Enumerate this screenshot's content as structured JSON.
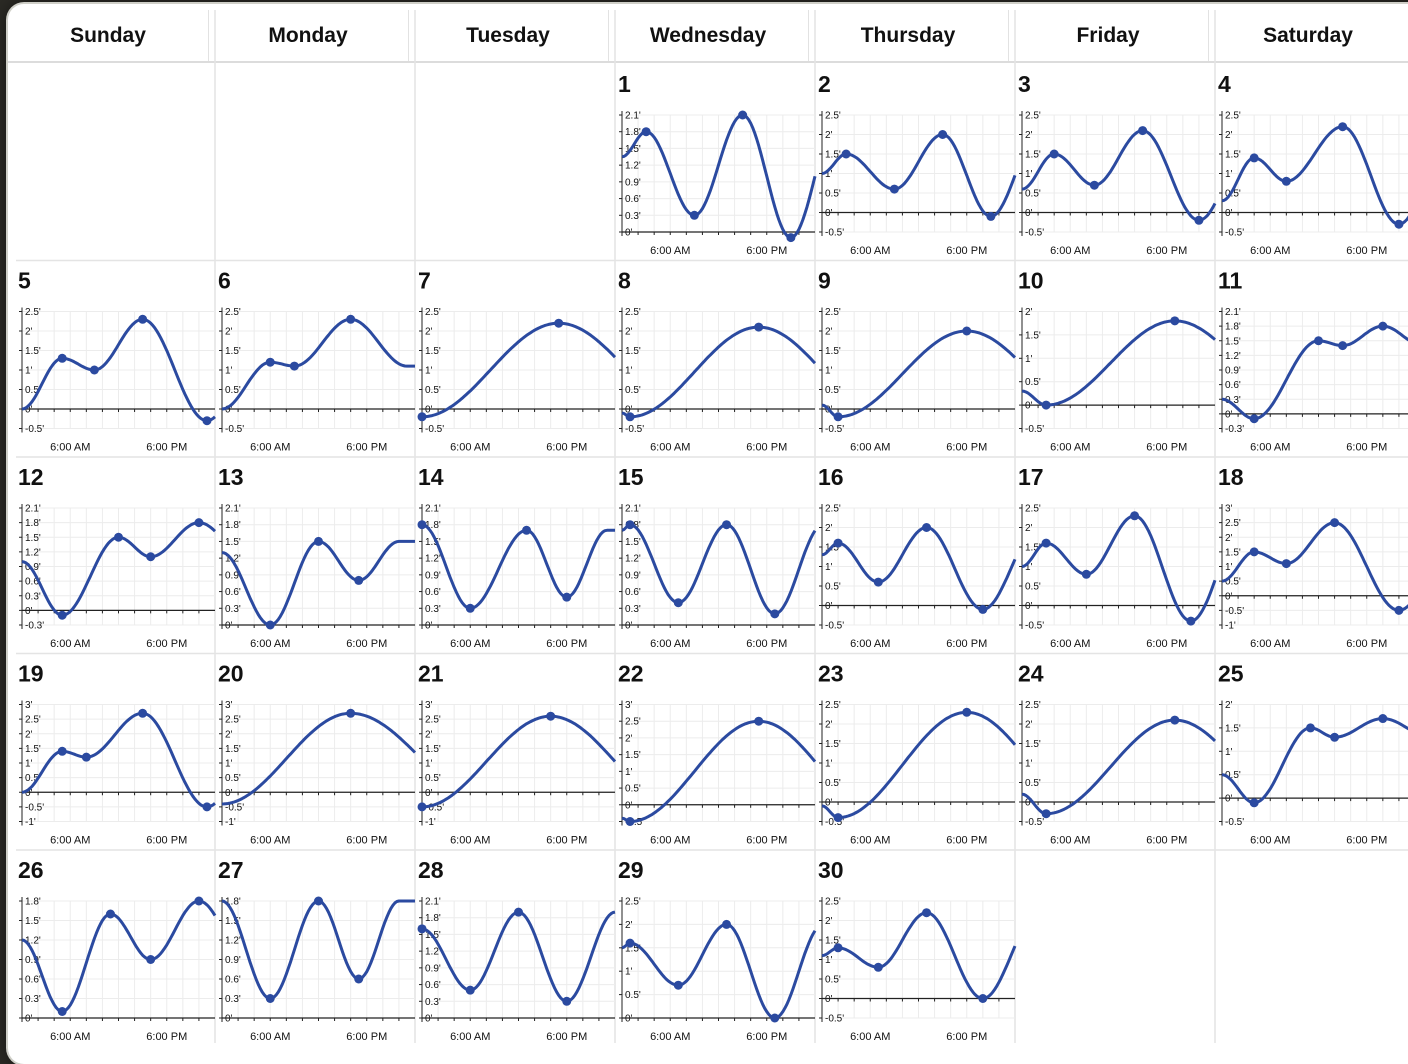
{
  "headers": [
    "Sunday",
    "Monday",
    "Tuesday",
    "Wednesday",
    "Thursday",
    "Friday",
    "Saturday"
  ],
  "colors": {
    "curve": "#2b4aa0",
    "grid": "#ececec",
    "axis": "#222222",
    "text": "#111111"
  },
  "chart_data": {
    "type": "line",
    "x_tick_labels": [
      "6:00 AM",
      "6:00 PM"
    ],
    "unit": "ft",
    "days": [
      {
        "date": "1",
        "col": 3,
        "row": 0,
        "yticks": [
          "2.1'",
          "1.8'",
          "1.5'",
          "1.2'",
          "0.9'",
          "0.6'",
          "0.3'",
          "0'"
        ],
        "points": [
          [
            3,
            1.8
          ],
          [
            9,
            0.3
          ],
          [
            15,
            2.1
          ],
          [
            21,
            -0.1
          ]
        ],
        "start": 1.35
      },
      {
        "date": "2",
        "col": 4,
        "row": 0,
        "yticks": [
          "2.5'",
          "2'",
          "1.5'",
          "1'",
          "0.5'",
          "0'",
          "-0.5'"
        ],
        "points": [
          [
            3,
            1.5
          ],
          [
            9,
            0.6
          ],
          [
            15,
            2.0
          ],
          [
            21,
            -0.1
          ]
        ],
        "start": 1.0
      },
      {
        "date": "3",
        "col": 5,
        "row": 0,
        "yticks": [
          "2.5'",
          "2'",
          "1.5'",
          "1'",
          "0.5'",
          "0'",
          "-0.5'"
        ],
        "points": [
          [
            4,
            1.5
          ],
          [
            9,
            0.7
          ],
          [
            15,
            2.1
          ],
          [
            22,
            -0.2
          ]
        ],
        "start": 0.6
      },
      {
        "date": "4",
        "col": 6,
        "row": 0,
        "yticks": [
          "2.5'",
          "2'",
          "1.5'",
          "1'",
          "0.5'",
          "0'",
          "-0.5'"
        ],
        "points": [
          [
            4,
            1.4
          ],
          [
            8,
            0.8
          ],
          [
            15,
            2.2
          ],
          [
            22,
            -0.3
          ]
        ],
        "start": 0.3
      },
      {
        "date": "5",
        "col": 0,
        "row": 1,
        "yticks": [
          "2.5'",
          "2'",
          "1.5'",
          "1'",
          "0.5'",
          "0'",
          "-0.5'"
        ],
        "points": [
          [
            5,
            1.3
          ],
          [
            9,
            1.0
          ],
          [
            15,
            2.3
          ],
          [
            23,
            -0.3
          ]
        ],
        "start": 0.0
      },
      {
        "date": "6",
        "col": 1,
        "row": 1,
        "yticks": [
          "2.5'",
          "2'",
          "1.5'",
          "1'",
          "0.5'",
          "0'",
          "-0.5'"
        ],
        "points": [
          [
            6,
            1.2
          ],
          [
            9,
            1.1
          ],
          [
            16,
            2.3
          ]
        ],
        "start": 0.0
      },
      {
        "date": "7",
        "col": 2,
        "row": 1,
        "yticks": [
          "2.5'",
          "2'",
          "1.5'",
          "1'",
          "0.5'",
          "0'",
          "-0.5'"
        ],
        "points": [
          [
            0,
            -0.2
          ],
          [
            17,
            2.2
          ]
        ],
        "start": -0.2
      },
      {
        "date": "8",
        "col": 3,
        "row": 1,
        "yticks": [
          "2.5'",
          "2'",
          "1.5'",
          "1'",
          "0.5'",
          "0'",
          "-0.5'"
        ],
        "points": [
          [
            1,
            -0.2
          ],
          [
            17,
            2.1
          ]
        ],
        "start": -0.1
      },
      {
        "date": "9",
        "col": 4,
        "row": 1,
        "yticks": [
          "2.5'",
          "2'",
          "1.5'",
          "1'",
          "0.5'",
          "0'",
          "-0.5'"
        ],
        "points": [
          [
            2,
            -0.2
          ],
          [
            18,
            2.0
          ]
        ],
        "start": 0.1
      },
      {
        "date": "10",
        "col": 5,
        "row": 1,
        "yticks": [
          "2'",
          "1.5'",
          "1'",
          "0.5'",
          "0'",
          "-0.5'"
        ],
        "points": [
          [
            3,
            0.0
          ],
          [
            19,
            1.8
          ]
        ],
        "start": 0.3
      },
      {
        "date": "11",
        "col": 6,
        "row": 1,
        "yticks": [
          "2.1'",
          "1.8'",
          "1.5'",
          "1.2'",
          "0.9'",
          "0.6'",
          "0.3'",
          "0'",
          "-0.3'"
        ],
        "points": [
          [
            4,
            -0.1
          ],
          [
            12,
            1.5
          ],
          [
            15,
            1.4
          ],
          [
            20,
            1.8
          ]
        ],
        "start": 0.3
      },
      {
        "date": "12",
        "col": 0,
        "row": 2,
        "yticks": [
          "2.1'",
          "1.8'",
          "1.5'",
          "1.2'",
          "0.9'",
          "0.6'",
          "0.3'",
          "0'",
          "-0.3'"
        ],
        "points": [
          [
            5,
            -0.1
          ],
          [
            12,
            1.5
          ],
          [
            16,
            1.1
          ],
          [
            22,
            1.8
          ]
        ],
        "start": 1.0
      },
      {
        "date": "13",
        "col": 1,
        "row": 2,
        "yticks": [
          "2.1'",
          "1.8'",
          "1.5'",
          "1.2'",
          "0.9'",
          "0.6'",
          "0.3'",
          "0'"
        ],
        "points": [
          [
            6,
            0.0
          ],
          [
            12,
            1.5
          ],
          [
            17,
            0.8
          ]
        ],
        "start": 1.3
      },
      {
        "date": "14",
        "col": 2,
        "row": 2,
        "yticks": [
          "2.1'",
          "1.8'",
          "1.5'",
          "1.2'",
          "0.9'",
          "0.6'",
          "0.3'",
          "0'"
        ],
        "points": [
          [
            0,
            1.8
          ],
          [
            6,
            0.3
          ],
          [
            13,
            1.7
          ],
          [
            18,
            0.5
          ]
        ],
        "start": 1.8
      },
      {
        "date": "15",
        "col": 3,
        "row": 2,
        "yticks": [
          "2.1'",
          "1.8'",
          "1.5'",
          "1.2'",
          "0.9'",
          "0.6'",
          "0.3'",
          "0'"
        ],
        "points": [
          [
            1,
            1.8
          ],
          [
            7,
            0.4
          ],
          [
            13,
            1.8
          ],
          [
            19,
            0.2
          ]
        ],
        "start": 1.7
      },
      {
        "date": "16",
        "col": 4,
        "row": 2,
        "yticks": [
          "2.5'",
          "2'",
          "1.5'",
          "1'",
          "0.5'",
          "0'",
          "-0.5'"
        ],
        "points": [
          [
            2,
            1.6
          ],
          [
            7,
            0.6
          ],
          [
            13,
            2.0
          ],
          [
            20,
            -0.1
          ]
        ],
        "start": 1.3
      },
      {
        "date": "17",
        "col": 5,
        "row": 2,
        "yticks": [
          "2.5'",
          "2'",
          "1.5'",
          "1'",
          "0.5'",
          "0'",
          "-0.5'"
        ],
        "points": [
          [
            3,
            1.6
          ],
          [
            8,
            0.8
          ],
          [
            14,
            2.3
          ],
          [
            21,
            -0.4
          ]
        ],
        "start": 1.0
      },
      {
        "date": "18",
        "col": 6,
        "row": 2,
        "yticks": [
          "3'",
          "2.5'",
          "2'",
          "1.5'",
          "1'",
          "0.5'",
          "0'",
          "-0.5'",
          "-1'"
        ],
        "points": [
          [
            4,
            1.5
          ],
          [
            8,
            1.1
          ],
          [
            14,
            2.5
          ],
          [
            22,
            -0.5
          ]
        ],
        "start": 0.5
      },
      {
        "date": "19",
        "col": 0,
        "row": 3,
        "yticks": [
          "3'",
          "2.5'",
          "2'",
          "1.5'",
          "1'",
          "0.5'",
          "0'",
          "-0.5'",
          "-1'"
        ],
        "points": [
          [
            5,
            1.4
          ],
          [
            8,
            1.2
          ],
          [
            15,
            2.7
          ],
          [
            23,
            -0.5
          ]
        ],
        "start": 0.0
      },
      {
        "date": "20",
        "col": 1,
        "row": 3,
        "yticks": [
          "3'",
          "2.5'",
          "2'",
          "1.5'",
          "1'",
          "0.5'",
          "0'",
          "-0.5'",
          "-1'"
        ],
        "points": [
          [
            16,
            2.7
          ]
        ],
        "start": -0.4
      },
      {
        "date": "21",
        "col": 2,
        "row": 3,
        "yticks": [
          "3'",
          "2.5'",
          "2'",
          "1.5'",
          "1'",
          "0.5'",
          "0'",
          "-0.5'",
          "-1'"
        ],
        "points": [
          [
            0,
            -0.5
          ],
          [
            16,
            2.6
          ]
        ],
        "start": -0.5
      },
      {
        "date": "22",
        "col": 3,
        "row": 3,
        "yticks": [
          "3'",
          "2.5'",
          "2'",
          "1.5'",
          "1'",
          "0.5'",
          "0'",
          "-0.5'"
        ],
        "points": [
          [
            1,
            -0.5
          ],
          [
            17,
            2.5
          ]
        ],
        "start": -0.4
      },
      {
        "date": "23",
        "col": 4,
        "row": 3,
        "yticks": [
          "2.5'",
          "2'",
          "1.5'",
          "1'",
          "0.5'",
          "0'",
          "-0.5'"
        ],
        "points": [
          [
            2,
            -0.4
          ],
          [
            18,
            2.3
          ]
        ],
        "start": -0.1
      },
      {
        "date": "24",
        "col": 5,
        "row": 3,
        "yticks": [
          "2.5'",
          "2'",
          "1.5'",
          "1'",
          "0.5'",
          "0'",
          "-0.5'"
        ],
        "points": [
          [
            3,
            -0.3
          ],
          [
            19,
            2.1
          ]
        ],
        "start": 0.2
      },
      {
        "date": "25",
        "col": 6,
        "row": 3,
        "yticks": [
          "2'",
          "1.5'",
          "1'",
          "0.5'",
          "0'",
          "-0.5'"
        ],
        "points": [
          [
            4,
            -0.1
          ],
          [
            11,
            1.5
          ],
          [
            14,
            1.3
          ],
          [
            20,
            1.7
          ]
        ],
        "start": 0.5
      },
      {
        "date": "26",
        "col": 0,
        "row": 4,
        "yticks": [
          "1.8'",
          "1.5'",
          "1.2'",
          "0.9'",
          "0.6'",
          "0.3'",
          "0'"
        ],
        "points": [
          [
            5,
            0.1
          ],
          [
            11,
            1.6
          ],
          [
            16,
            0.9
          ],
          [
            22,
            1.8
          ]
        ],
        "start": 1.2
      },
      {
        "date": "27",
        "col": 1,
        "row": 4,
        "yticks": [
          "1.8'",
          "1.5'",
          "1.2'",
          "0.9'",
          "0.6'",
          "0.3'",
          "0'"
        ],
        "points": [
          [
            6,
            0.3
          ],
          [
            12,
            1.8
          ],
          [
            17,
            0.6
          ]
        ],
        "start": 1.8
      },
      {
        "date": "28",
        "col": 2,
        "row": 4,
        "yticks": [
          "2.1'",
          "1.8'",
          "1.5'",
          "1.2'",
          "0.9'",
          "0.6'",
          "0.3'",
          "0'"
        ],
        "points": [
          [
            0,
            1.6
          ],
          [
            6,
            0.5
          ],
          [
            12,
            1.9
          ],
          [
            18,
            0.3
          ]
        ],
        "start": 1.6
      },
      {
        "date": "29",
        "col": 3,
        "row": 4,
        "yticks": [
          "2.5'",
          "2'",
          "1.5'",
          "1'",
          "0.5'",
          "0'"
        ],
        "points": [
          [
            1,
            1.6
          ],
          [
            7,
            0.7
          ],
          [
            13,
            2.0
          ],
          [
            19,
            0.0
          ]
        ],
        "start": 1.5
      },
      {
        "date": "30",
        "col": 4,
        "row": 4,
        "yticks": [
          "2.5'",
          "2'",
          "1.5'",
          "1'",
          "0.5'",
          "0'",
          "-0.5'"
        ],
        "points": [
          [
            2,
            1.3
          ],
          [
            7,
            0.8
          ],
          [
            13,
            2.2
          ],
          [
            20,
            0.0
          ]
        ],
        "start": 1.1
      }
    ]
  }
}
